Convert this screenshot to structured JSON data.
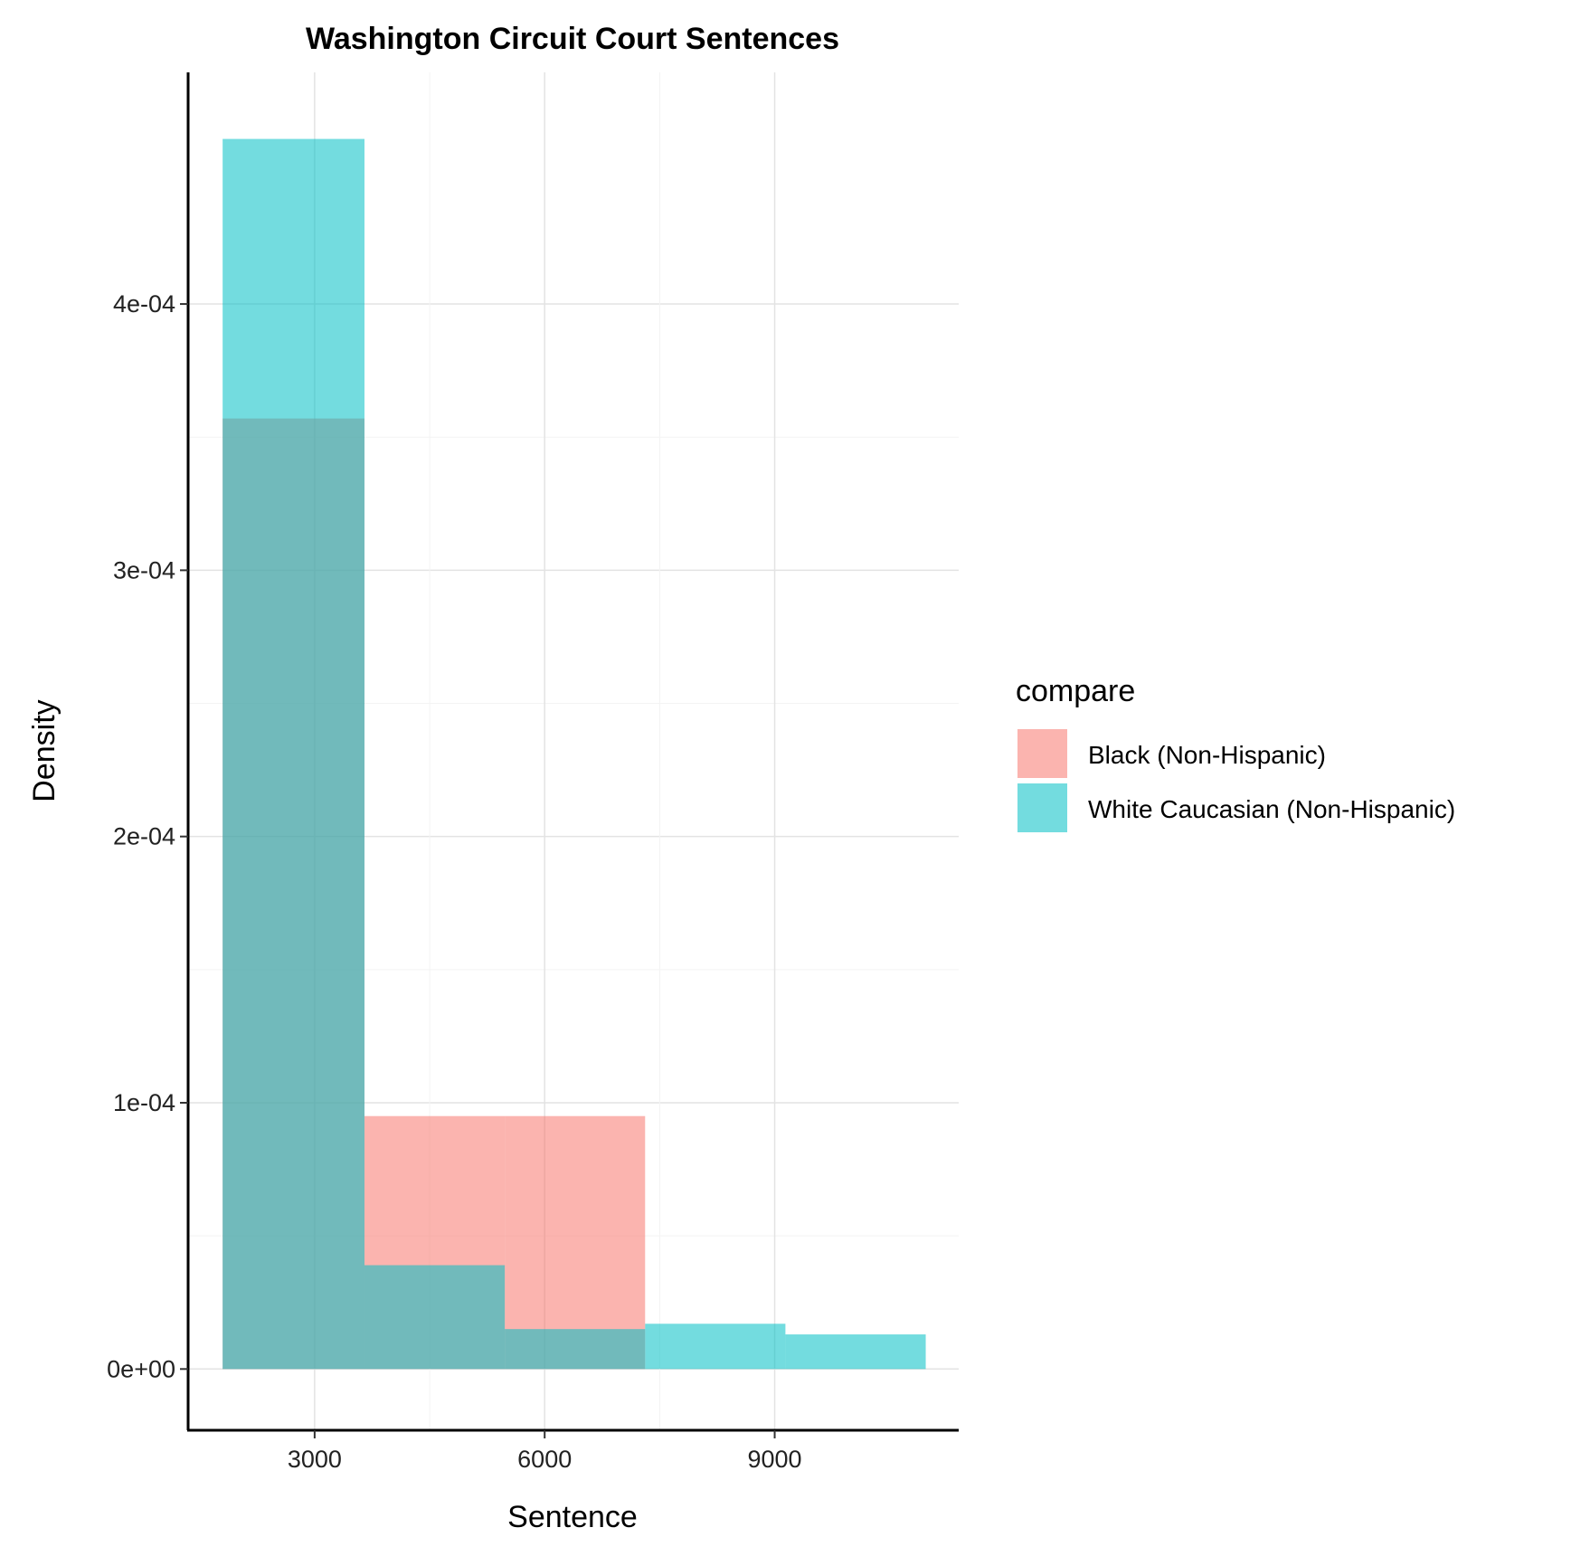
{
  "chart_data": {
    "type": "histogram",
    "title": "Washington Circuit Court Sentences",
    "xlabel": "Sentence",
    "ylabel": "Density",
    "x_ticks": [
      3000,
      6000,
      9000
    ],
    "x_tick_labels": [
      "3000",
      "6000",
      "9000"
    ],
    "y_ticks": [
      0,
      0.0001,
      0.0002,
      0.0003,
      0.0004
    ],
    "y_tick_labels": [
      "0e+00",
      "1e-04",
      "2e-04",
      "3e-04",
      "4e-04"
    ],
    "xlim": [
      1350,
      11400
    ],
    "ylim": [
      -2.3e-05,
      0.000487
    ],
    "grid": true,
    "legend_title": "compare",
    "legend_position": "right",
    "bins": [
      [
        1800,
        3650
      ],
      [
        3650,
        5480
      ],
      [
        5480,
        7310
      ],
      [
        7310,
        9140
      ],
      [
        9140,
        10970
      ]
    ],
    "series": [
      {
        "name": "Black (Non-Hispanic)",
        "color": "#F8766D",
        "values": [
          0.000357,
          9.5e-05,
          9.5e-05,
          0,
          0
        ]
      },
      {
        "name": "White Caucasian (Non-Hispanic)",
        "color": "#00BFC4",
        "values": [
          0.000462,
          3.9e-05,
          1.5e-05,
          1.7e-05,
          1.3e-05
        ]
      }
    ]
  }
}
